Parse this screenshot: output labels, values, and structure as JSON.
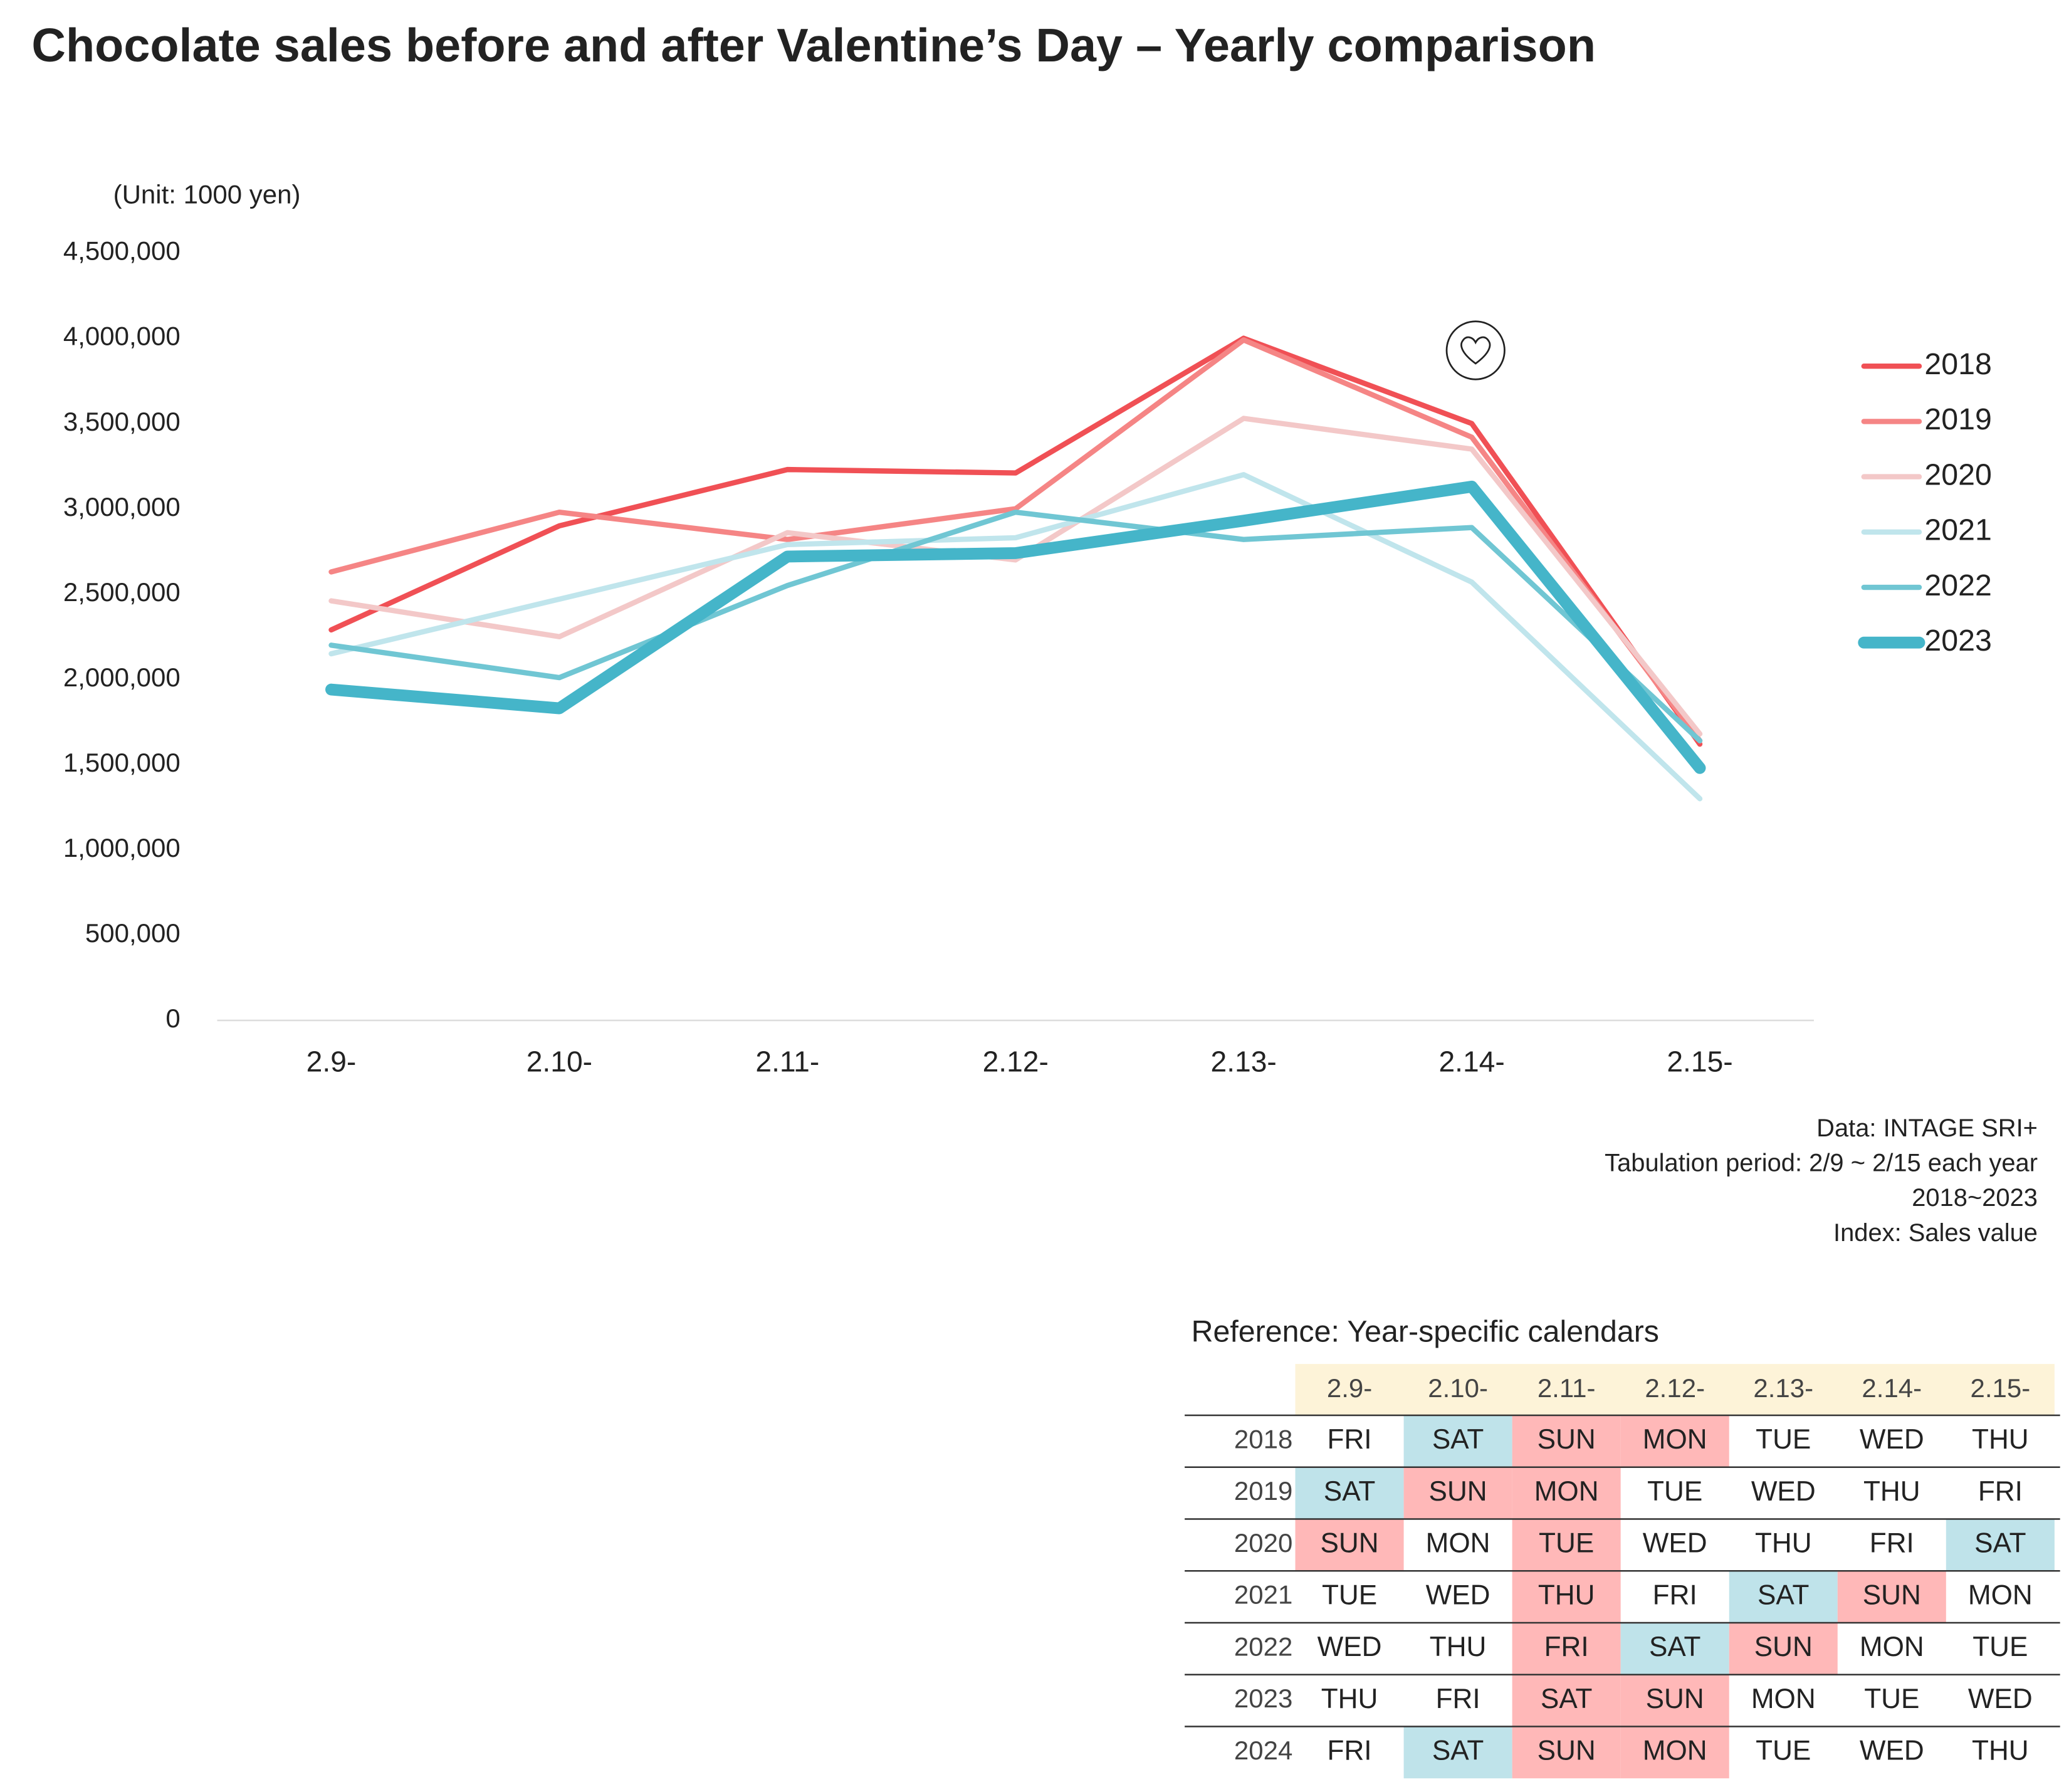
{
  "chart_data": {
    "type": "line",
    "title": "Chocolate sales before and after Valentine’s Day – Yearly comparison",
    "y_label": "(Unit: 1000 yen)",
    "categories": [
      "2.9-",
      "2.10-",
      "2.11-",
      "2.12-",
      "2.13-",
      "2.14-",
      "2.15-"
    ],
    "series": [
      {
        "name": "2018",
        "color": "#f05055",
        "values": [
          2290000,
          2900000,
          3230000,
          3210000,
          4000000,
          3500000,
          1620000
        ]
      },
      {
        "name": "2019",
        "color": "#f58585",
        "values": [
          2630000,
          2980000,
          2820000,
          3000000,
          3990000,
          3420000,
          1640000
        ]
      },
      {
        "name": "2020",
        "color": "#f3c8c8",
        "values": [
          2460000,
          2250000,
          2860000,
          2700000,
          3530000,
          3350000,
          1680000
        ]
      },
      {
        "name": "2021",
        "color": "#c0e5ec",
        "values": [
          2150000,
          2470000,
          2790000,
          2830000,
          3200000,
          2570000,
          1300000
        ]
      },
      {
        "name": "2022",
        "color": "#70c6d3",
        "values": [
          2200000,
          2010000,
          2550000,
          2980000,
          2820000,
          2890000,
          1640000
        ]
      },
      {
        "name": "2023",
        "color": "#45b5c9",
        "highlight": true,
        "values": [
          1940000,
          1830000,
          2720000,
          2740000,
          2930000,
          3130000,
          1480000
        ]
      }
    ],
    "ylim": [
      0,
      4500000
    ],
    "yticks": [
      0,
      {
        "value": 500000,
        "label": "500,000"
      },
      {
        "value": 1000000,
        "label": "1,000,000"
      },
      {
        "value": 1500000,
        "label": "1,500,000"
      },
      {
        "value": 2000000,
        "label": "2,000,000"
      },
      {
        "value": 2500000,
        "label": "2,500,000"
      },
      {
        "value": 3000000,
        "label": "3,000,000"
      },
      {
        "value": 3500000,
        "label": "3,500,000"
      },
      {
        "value": 4000000,
        "label": "4,000,000"
      },
      {
        "value": 4500000,
        "label": "4,500,000"
      }
    ],
    "grid": false,
    "legend": "right"
  },
  "notes": [
    "Data: INTAGE SRI+",
    "Tabulation period: 2/9 ~ 2/15 each year",
    "2018~2023",
    "Index: Sales value"
  ],
  "calendar": {
    "title": "Reference: Year-specific calendars",
    "header_color": "#fdf3d8",
    "columns": [
      "2.9-",
      "2.10-",
      "2.11-",
      "2.12-",
      "2.13-",
      "2.14-",
      "2.15-"
    ],
    "rows": [
      {
        "year": "2018",
        "days": [
          "FRI",
          {
            "text": "SAT",
            "color": "#bfe3ea"
          },
          {
            "text": "SUN",
            "color": "#ffb8b8"
          },
          {
            "text": "MON",
            "color": "#ffb8b8"
          },
          "TUE",
          "WED",
          "THU"
        ]
      },
      {
        "year": "2019",
        "days": [
          {
            "text": "SAT",
            "color": "#bfe3ea"
          },
          {
            "text": "SUN",
            "color": "#ffb8b8"
          },
          {
            "text": "MON",
            "color": "#ffb8b8"
          },
          "TUE",
          "WED",
          "THU",
          "FRI"
        ]
      },
      {
        "year": "2020",
        "days": [
          {
            "text": "SUN",
            "color": "#ffb8b8"
          },
          "MON",
          {
            "text": "TUE",
            "color": "#ffb8b8"
          },
          "WED",
          "THU",
          "FRI",
          {
            "text": "SAT",
            "color": "#bfe3ea"
          }
        ]
      },
      {
        "year": "2021",
        "days": [
          "TUE",
          "WED",
          {
            "text": "THU",
            "color": "#ffb8b8"
          },
          "FRI",
          {
            "text": "SAT",
            "color": "#bfe3ea"
          },
          {
            "text": "SUN",
            "color": "#ffb8b8"
          },
          "MON"
        ]
      },
      {
        "year": "2022",
        "days": [
          "WED",
          "THU",
          {
            "text": "FRI",
            "color": "#ffb8b8"
          },
          {
            "text": "SAT",
            "color": "#bfe3ea"
          },
          {
            "text": "SUN",
            "color": "#ffb8b8"
          },
          "MON",
          "TUE"
        ]
      },
      {
        "year": "2023",
        "days": [
          "THU",
          "FRI",
          {
            "text": "SAT",
            "color": "#ffb8b8"
          },
          {
            "text": "SUN",
            "color": "#ffb8b8"
          },
          "MON",
          "TUE",
          "WED"
        ]
      },
      {
        "year": "2024",
        "days": [
          "FRI",
          {
            "text": "SAT",
            "color": "#bfe3ea"
          },
          {
            "text": "SUN",
            "color": "#ffb8b8"
          },
          {
            "text": "MON",
            "color": "#ffb8b8"
          },
          "TUE",
          "WED",
          "THU"
        ]
      }
    ]
  }
}
